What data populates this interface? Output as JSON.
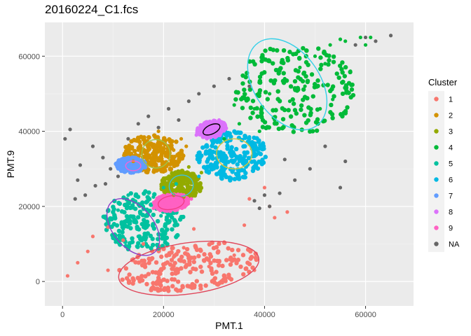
{
  "chart_data": {
    "type": "scatter",
    "title": "20160224_C1.fcs",
    "xlabel": "PMT.1",
    "ylabel": "PMT.9",
    "xlim": [
      -3500,
      69500
    ],
    "ylim": [
      -6500,
      69000
    ],
    "x_ticks": [
      0,
      20000,
      40000,
      60000
    ],
    "y_ticks": [
      0,
      20000,
      40000,
      60000
    ],
    "grid": true,
    "legend_position": "right",
    "legend_title": "Cluster",
    "clusters": [
      {
        "name": "1",
        "color": "#F8766D",
        "ellipse_color": "#E0475B",
        "center": [
          25000,
          4000
        ],
        "radius": [
          14000,
          6500
        ],
        "angle": 8,
        "ellipse": [
          25000,
          3500,
          14000,
          6800,
          8
        ]
      },
      {
        "name": "2",
        "color": "#D39200",
        "ellipse_color": "#9DC44A",
        "center": [
          18000,
          34000
        ],
        "radius": [
          6000,
          5000
        ],
        "angle": 0,
        "ellipse": [
          18500,
          34000,
          2800,
          3800,
          0
        ]
      },
      {
        "name": "3",
        "color": "#93AA00",
        "ellipse_color": "#3FC1D6",
        "center": [
          23500,
          25500
        ],
        "radius": [
          4000,
          4000
        ],
        "angle": 20,
        "ellipse": [
          23500,
          25500,
          2400,
          2800,
          15
        ]
      },
      {
        "name": "4",
        "color": "#00BA38",
        "ellipse_color": "#35D0E8",
        "center": [
          46000,
          51000
        ],
        "radius": [
          12000,
          12000
        ],
        "angle": 40,
        "ellipse": [
          44500,
          52500,
          6500,
          13500,
          -145
        ]
      },
      {
        "name": "5",
        "color": "#00C19F",
        "ellipse_color": "#8B40C9",
        "center": [
          16000,
          16000
        ],
        "radius": [
          8000,
          8000
        ],
        "angle": -30,
        "ellipse": [
          14000,
          14500,
          4000,
          8800,
          40
        ]
      },
      {
        "name": "6",
        "color": "#00B9E3",
        "ellipse_color": "#D4C63A",
        "center": [
          33500,
          33500
        ],
        "radius": [
          7000,
          6500
        ],
        "angle": 30,
        "ellipse": [
          34000,
          34000,
          3500,
          4000,
          0
        ]
      },
      {
        "name": "7",
        "color": "#619CFF",
        "ellipse_color": "#F064D9",
        "center": [
          13500,
          31000
        ],
        "radius": [
          3000,
          2000
        ],
        "angle": 0,
        "ellipse": [
          14000,
          30800,
          1500,
          1300,
          0
        ]
      },
      {
        "name": "8",
        "color": "#DB72FB",
        "ellipse_color": "#000000",
        "center": [
          29500,
          40500
        ],
        "radius": [
          3000,
          2200
        ],
        "angle": 25,
        "ellipse": [
          29500,
          40500,
          1800,
          1200,
          25
        ]
      },
      {
        "name": "9",
        "color": "#FF61C3",
        "ellipse_color": "#F23D85",
        "center": [
          21500,
          21000
        ],
        "radius": [
          3500,
          2200
        ],
        "angle": 10,
        "ellipse": [
          21500,
          21000,
          2600,
          1800,
          10
        ]
      },
      {
        "name": "NA",
        "color": "#666666",
        "ellipse_color": "",
        "center": [
          0,
          0
        ],
        "radius": [
          0,
          0
        ],
        "angle": 0,
        "ellipse": null
      }
    ],
    "series": [
      {
        "name": "1",
        "x": [
          1000,
          5000,
          9000,
          14000,
          19000,
          24000,
          29000,
          34000,
          38000,
          41000,
          36000,
          26000,
          16000,
          6000,
          3000,
          12000,
          22000,
          32000,
          37000,
          9000,
          42000,
          40000,
          44500
        ],
        "y": [
          1500,
          8000,
          3000,
          6000,
          2000,
          9000,
          4000,
          7000,
          3000,
          20000,
          15000,
          14000,
          10000,
          12000,
          5000,
          11000,
          6500,
          10500,
          22000,
          14500,
          17000,
          25000,
          18500
        ]
      },
      {
        "name": "2",
        "x": [
          14000,
          17000,
          20000,
          22000,
          23500,
          19000,
          16500,
          21000,
          18500,
          24500,
          15000
        ],
        "y": [
          32000,
          31000,
          30000,
          35000,
          38000,
          40000,
          37000,
          33000,
          34500,
          36000,
          35000
        ]
      },
      {
        "name": "3",
        "x": [
          20500,
          22000,
          24000,
          26000,
          27500,
          23000,
          25000,
          21500,
          26500
        ],
        "y": [
          24000,
          23000,
          22500,
          26000,
          29000,
          28500,
          30500,
          27000,
          24500
        ]
      },
      {
        "name": "4",
        "x": [
          32000,
          35000,
          38000,
          41000,
          44000,
          47000,
          50000,
          53000,
          56000,
          59000,
          61000,
          48000,
          42000,
          39000,
          45000,
          52000,
          34000,
          36000,
          51000,
          55000,
          60000,
          57000,
          53500
        ],
        "y": [
          38000,
          42000,
          46000,
          50000,
          54000,
          57000,
          60000,
          63000,
          64000,
          65000,
          65000,
          52000,
          43000,
          40000,
          48000,
          58000,
          47000,
          50000,
          46000,
          64500,
          63000,
          56000,
          48500
        ]
      },
      {
        "name": "5",
        "x": [
          10500,
          12000,
          14000,
          16000,
          18000,
          20000,
          22500,
          15000,
          11000,
          19500,
          13000,
          17000
        ],
        "y": [
          10500,
          14000,
          17000,
          20000,
          22500,
          25000,
          26000,
          12000,
          19000,
          17500,
          23000,
          15000
        ]
      },
      {
        "name": "6",
        "x": [
          27000,
          30000,
          33000,
          36000,
          38500,
          31000,
          34500,
          29000,
          37000,
          32000
        ],
        "y": [
          28000,
          30000,
          27500,
          31000,
          35000,
          38000,
          39500,
          34000,
          38500,
          33500
        ]
      },
      {
        "name": "7",
        "x": [
          11000,
          12500,
          14500,
          16000,
          13500,
          15500
        ],
        "y": [
          30000,
          32500,
          33000,
          30500,
          29500,
          31500
        ]
      },
      {
        "name": "8",
        "x": [
          26500,
          28000,
          30000,
          32000,
          29000,
          31000,
          27500
        ],
        "y": [
          39000,
          41000,
          42500,
          41500,
          40000,
          43000,
          40500
        ]
      },
      {
        "name": "9",
        "x": [
          18000,
          20000,
          22000,
          24000,
          25500,
          21000,
          23000
        ],
        "y": [
          19500,
          20000,
          22000,
          23000,
          22000,
          21000,
          20500
        ]
      },
      {
        "name": "NA",
        "x": [
          500,
          1500,
          3000,
          4500,
          6000,
          8000,
          9500,
          11000,
          13000,
          15000,
          17000,
          19000,
          21000,
          23000,
          25000,
          27000,
          30000,
          33000,
          37000,
          40000,
          43000,
          46000,
          49000,
          52000,
          55000,
          58000,
          60000,
          62000,
          65000,
          56000,
          44000,
          41000,
          38000,
          39000,
          3500,
          8500,
          2500,
          6500
        ],
        "y": [
          38000,
          40500,
          27000,
          23000,
          36000,
          33000,
          30000,
          28000,
          38000,
          42000,
          44000,
          41000,
          46000,
          43000,
          48000,
          50000,
          52000,
          54000,
          52000,
          23000,
          23500,
          27000,
          30000,
          36000,
          25000,
          63000,
          65000,
          64000,
          65500,
          32000,
          32500,
          20000,
          21500,
          19500,
          31000,
          26000,
          22000,
          25500
        ]
      }
    ]
  }
}
